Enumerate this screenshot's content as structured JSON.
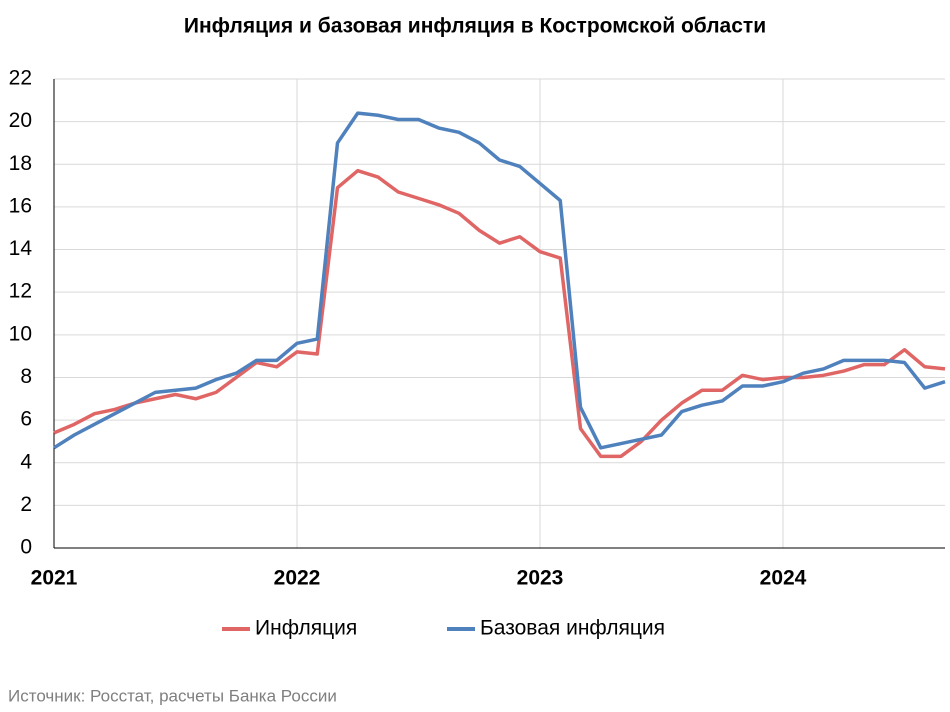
{
  "chart_data": {
    "type": "line",
    "title": "Инфляция и базовая инфляция в Костромской области",
    "source": "Источник: Росстат, расчеты Банка России",
    "categories": [
      "2021",
      null,
      null,
      null,
      null,
      null,
      null,
      null,
      null,
      null,
      null,
      null,
      "2022",
      null,
      null,
      null,
      null,
      null,
      null,
      null,
      null,
      null,
      null,
      null,
      "2023",
      null,
      null,
      null,
      null,
      null,
      null,
      null,
      null,
      null,
      null,
      null,
      "2024",
      null,
      null,
      null,
      null,
      null,
      null,
      null,
      null
    ],
    "series": [
      {
        "name": "Инфляция",
        "color": "#e06666",
        "values": [
          5.4,
          5.8,
          6.3,
          6.5,
          6.8,
          7.0,
          7.2,
          7.0,
          7.3,
          8.0,
          8.7,
          8.5,
          9.2,
          9.1,
          16.9,
          17.7,
          17.4,
          16.7,
          16.4,
          16.1,
          15.7,
          14.9,
          14.3,
          14.6,
          13.9,
          13.6,
          5.6,
          4.3,
          4.3,
          5.0,
          6.0,
          6.8,
          7.4,
          7.4,
          8.1,
          7.9,
          8.0,
          8.0,
          8.1,
          8.3,
          8.6,
          8.6,
          9.3,
          8.5,
          8.4
        ]
      },
      {
        "name": "Базовая инфляция",
        "color": "#4f81bd",
        "values": [
          4.7,
          5.3,
          5.8,
          6.3,
          6.8,
          7.3,
          7.4,
          7.5,
          7.9,
          8.2,
          8.8,
          8.8,
          9.6,
          9.8,
          19.0,
          20.4,
          20.3,
          20.1,
          20.1,
          19.7,
          19.5,
          19.0,
          18.2,
          17.9,
          17.1,
          16.3,
          6.6,
          4.7,
          4.9,
          5.1,
          5.3,
          6.4,
          6.7,
          6.9,
          7.6,
          7.6,
          7.8,
          8.2,
          8.4,
          8.8,
          8.8,
          8.8,
          8.7,
          7.5,
          7.8
        ]
      }
    ],
    "ylim": [
      0,
      22
    ],
    "yticks": [
      0,
      2,
      4,
      6,
      8,
      10,
      12,
      14,
      16,
      18,
      20,
      22
    ],
    "grid": true,
    "legend": "bottom"
  }
}
